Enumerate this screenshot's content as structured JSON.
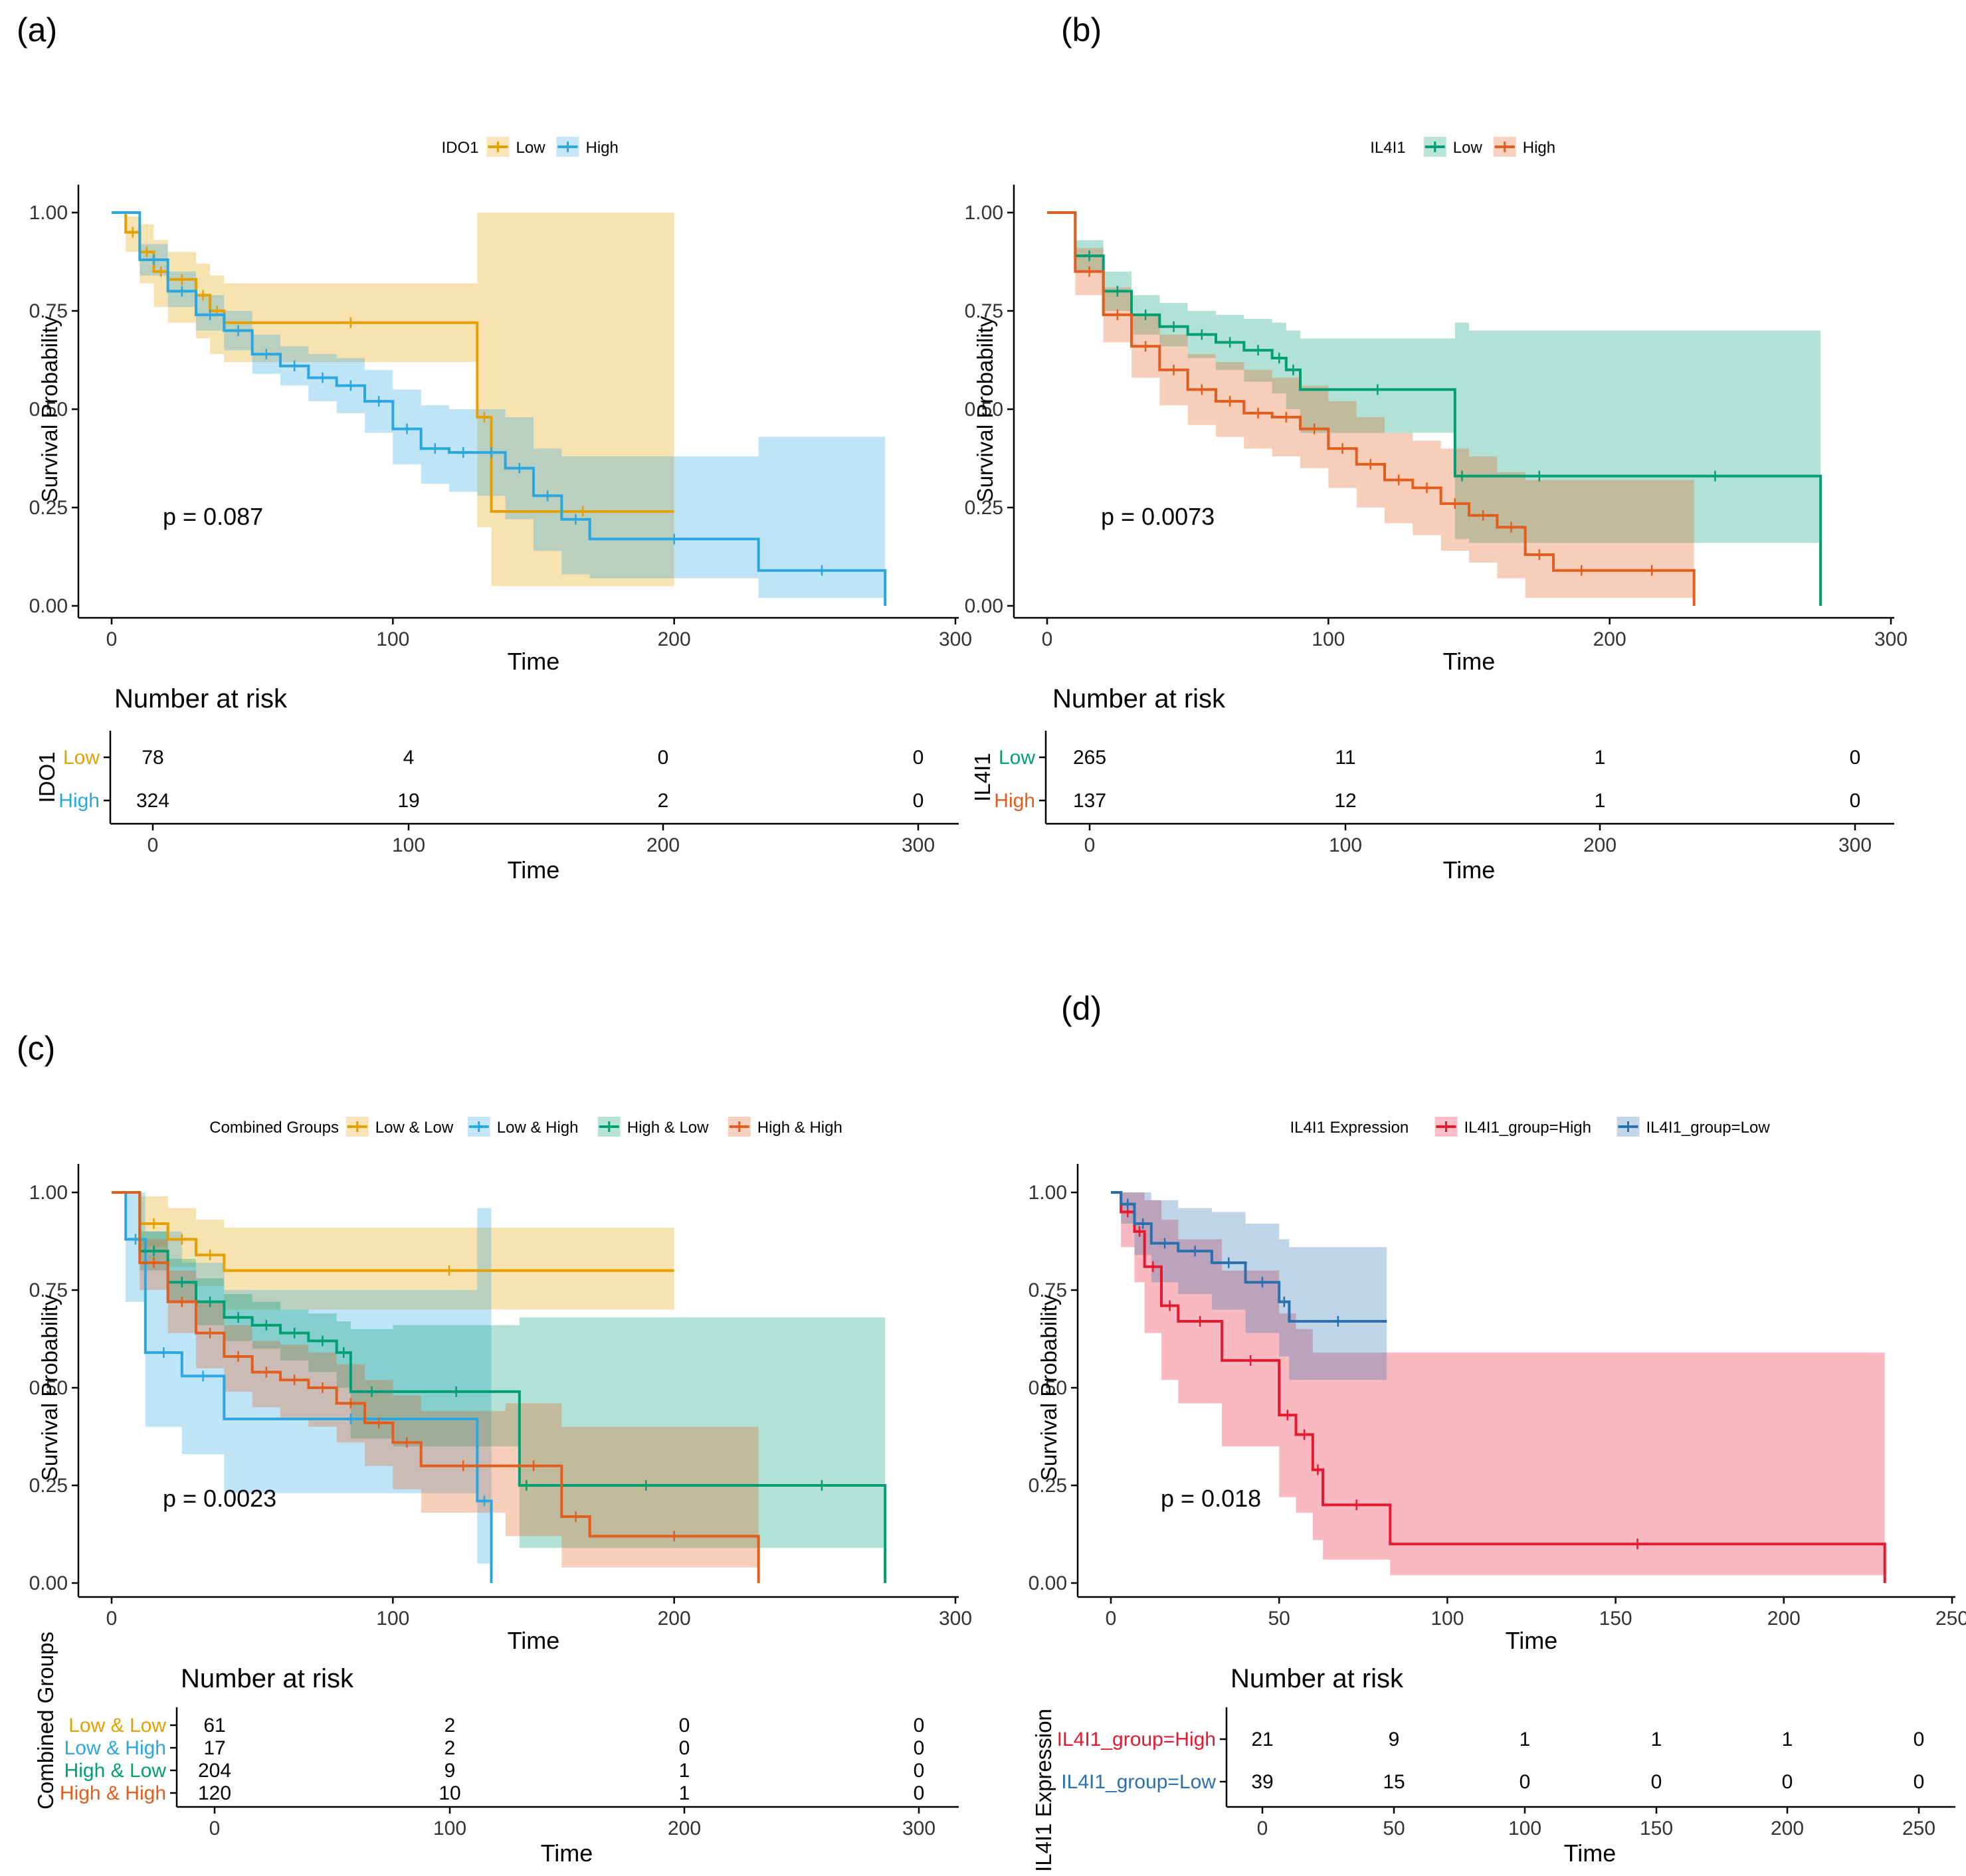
{
  "chart_data": [
    {
      "type": "line",
      "panel_label": "(a)",
      "legend_title": "IDO1",
      "xlabel": "Time",
      "ylabel": "Survival Probability",
      "xlim": [
        0,
        300
      ],
      "ylim": [
        0,
        1
      ],
      "xticks": [
        "0",
        "100",
        "200",
        "300"
      ],
      "yticks": [
        "0.00",
        "0.25",
        "0.50",
        "0.75",
        "1.00"
      ],
      "pvalue": "p = 0.087",
      "series": [
        {
          "name": "Low",
          "color": "#E69F00",
          "x": [
            0,
            5,
            10,
            15,
            20,
            30,
            35,
            40,
            130,
            135,
            200
          ],
          "y": [
            1.0,
            0.95,
            0.9,
            0.85,
            0.83,
            0.79,
            0.75,
            0.72,
            0.48,
            0.24,
            0.24
          ],
          "ci_lo": [
            1.0,
            0.9,
            0.82,
            0.76,
            0.72,
            0.68,
            0.64,
            0.62,
            0.2,
            0.05,
            0.05
          ],
          "ci_hi": [
            1.0,
            0.99,
            0.97,
            0.93,
            0.9,
            0.87,
            0.84,
            0.82,
            1.0,
            1.0,
            1.0
          ]
        },
        {
          "name": "High",
          "color": "#2AA7E0",
          "x": [
            0,
            10,
            20,
            30,
            40,
            50,
            60,
            70,
            80,
            90,
            100,
            110,
            120,
            130,
            140,
            150,
            160,
            170,
            230,
            275
          ],
          "y": [
            1.0,
            0.88,
            0.8,
            0.74,
            0.7,
            0.64,
            0.61,
            0.58,
            0.56,
            0.52,
            0.45,
            0.4,
            0.39,
            0.39,
            0.35,
            0.28,
            0.22,
            0.17,
            0.09,
            0.0
          ],
          "ci_lo": [
            1.0,
            0.84,
            0.76,
            0.7,
            0.65,
            0.59,
            0.56,
            0.52,
            0.49,
            0.44,
            0.36,
            0.31,
            0.29,
            0.28,
            0.22,
            0.14,
            0.08,
            0.07,
            0.02,
            0.02
          ],
          "ci_hi": [
            1.0,
            0.92,
            0.85,
            0.79,
            0.75,
            0.69,
            0.66,
            0.64,
            0.63,
            0.6,
            0.55,
            0.51,
            0.5,
            0.5,
            0.48,
            0.4,
            0.38,
            0.38,
            0.43,
            0.43
          ]
        }
      ],
      "risk_table": {
        "title": "Number at risk",
        "ylabel": "IDO1",
        "times": [
          "0",
          "100",
          "200",
          "300"
        ],
        "rows": [
          {
            "label": "Low",
            "values": [
              "78",
              "4",
              "0",
              "0"
            ]
          },
          {
            "label": "High",
            "values": [
              "324",
              "19",
              "2",
              "0"
            ]
          }
        ]
      }
    },
    {
      "type": "line",
      "panel_label": "(b)",
      "legend_title": "IL4I1",
      "xlabel": "Time",
      "ylabel": "Survival Probability",
      "xlim": [
        0,
        300
      ],
      "ylim": [
        0,
        1
      ],
      "xticks": [
        "0",
        "100",
        "200",
        "300"
      ],
      "yticks": [
        "0.00",
        "0.25",
        "0.50",
        "0.75",
        "1.00"
      ],
      "pvalue": "p = 0.0073",
      "series": [
        {
          "name": "Low",
          "color": "#009E73",
          "x": [
            0,
            10,
            20,
            30,
            40,
            50,
            60,
            70,
            80,
            85,
            90,
            145,
            150,
            200,
            275
          ],
          "y": [
            1.0,
            0.89,
            0.8,
            0.74,
            0.71,
            0.69,
            0.67,
            0.65,
            0.63,
            0.6,
            0.55,
            0.33,
            0.33,
            0.33,
            0.0
          ],
          "ci_lo": [
            1.0,
            0.85,
            0.75,
            0.69,
            0.66,
            0.63,
            0.6,
            0.57,
            0.54,
            0.5,
            0.44,
            0.17,
            0.16,
            0.16,
            0.16
          ],
          "ci_hi": [
            1.0,
            0.93,
            0.85,
            0.79,
            0.77,
            0.75,
            0.74,
            0.73,
            0.72,
            0.7,
            0.68,
            0.72,
            0.7,
            0.7,
            0.7
          ]
        },
        {
          "name": "High",
          "color": "#E35D1C",
          "x": [
            0,
            10,
            20,
            30,
            40,
            50,
            60,
            70,
            80,
            90,
            100,
            110,
            120,
            130,
            140,
            150,
            160,
            170,
            180,
            200,
            230
          ],
          "y": [
            1.0,
            0.85,
            0.74,
            0.66,
            0.6,
            0.55,
            0.52,
            0.49,
            0.48,
            0.45,
            0.4,
            0.36,
            0.32,
            0.3,
            0.26,
            0.23,
            0.2,
            0.13,
            0.09,
            0.09,
            0.0
          ],
          "ci_lo": [
            1.0,
            0.79,
            0.67,
            0.58,
            0.51,
            0.46,
            0.43,
            0.4,
            0.38,
            0.35,
            0.3,
            0.25,
            0.21,
            0.18,
            0.14,
            0.11,
            0.07,
            0.02,
            0.02,
            0.02,
            0.02
          ],
          "ci_hi": [
            1.0,
            0.91,
            0.81,
            0.74,
            0.69,
            0.64,
            0.62,
            0.6,
            0.58,
            0.56,
            0.52,
            0.48,
            0.44,
            0.42,
            0.4,
            0.38,
            0.34,
            0.32,
            0.32,
            0.32,
            0.32
          ]
        }
      ],
      "risk_table": {
        "title": "Number at risk",
        "ylabel": "IL4I1",
        "times": [
          "0",
          "100",
          "200",
          "300"
        ],
        "rows": [
          {
            "label": "Low",
            "values": [
              "265",
              "11",
              "1",
              "0"
            ]
          },
          {
            "label": "High",
            "values": [
              "137",
              "12",
              "1",
              "0"
            ]
          }
        ]
      }
    },
    {
      "type": "line",
      "panel_label": "(c)",
      "legend_title": "Combined Groups",
      "xlabel": "Time",
      "ylabel": "Survival Probability",
      "xlim": [
        0,
        300
      ],
      "ylim": [
        0,
        1
      ],
      "xticks": [
        "0",
        "100",
        "200",
        "300"
      ],
      "yticks": [
        "0.00",
        "0.25",
        "0.50",
        "0.75",
        "1.00"
      ],
      "pvalue": "p = 0.0023",
      "series": [
        {
          "name": "Low & Low",
          "color": "#E69F00",
          "x": [
            0,
            10,
            20,
            30,
            40,
            200
          ],
          "y": [
            1.0,
            0.92,
            0.88,
            0.84,
            0.8,
            0.8
          ],
          "ci_lo": [
            1.0,
            0.86,
            0.81,
            0.76,
            0.7,
            0.7
          ],
          "ci_hi": [
            1.0,
            0.99,
            0.96,
            0.93,
            0.91,
            0.91
          ]
        },
        {
          "name": "Low & High",
          "color": "#2AA7E0",
          "x": [
            0,
            5,
            12,
            25,
            40,
            130,
            135
          ],
          "y": [
            1.0,
            0.88,
            0.59,
            0.53,
            0.42,
            0.21,
            0.0
          ],
          "ci_lo": [
            1.0,
            0.72,
            0.4,
            0.33,
            0.23,
            0.05,
            0.05
          ],
          "ci_hi": [
            1.0,
            1.0,
            0.9,
            0.82,
            0.75,
            0.96,
            0.96
          ]
        },
        {
          "name": "High & Low",
          "color": "#009E73",
          "x": [
            0,
            10,
            20,
            30,
            40,
            50,
            60,
            70,
            80,
            85,
            100,
            145,
            150,
            230,
            275
          ],
          "y": [
            1.0,
            0.85,
            0.77,
            0.72,
            0.68,
            0.66,
            0.64,
            0.62,
            0.59,
            0.49,
            0.49,
            0.25,
            0.25,
            0.25,
            0.0
          ],
          "ci_lo": [
            1.0,
            0.8,
            0.72,
            0.66,
            0.62,
            0.6,
            0.57,
            0.54,
            0.5,
            0.37,
            0.35,
            0.09,
            0.09,
            0.09,
            0.09
          ],
          "ci_hi": [
            1.0,
            0.9,
            0.83,
            0.78,
            0.74,
            0.72,
            0.7,
            0.69,
            0.67,
            0.65,
            0.66,
            0.68,
            0.68,
            0.68,
            0.68
          ]
        },
        {
          "name": "High & High",
          "color": "#E35D1C",
          "x": [
            0,
            10,
            20,
            30,
            40,
            50,
            60,
            70,
            80,
            90,
            100,
            110,
            140,
            160,
            170,
            230
          ],
          "y": [
            1.0,
            0.82,
            0.72,
            0.64,
            0.58,
            0.54,
            0.52,
            0.5,
            0.46,
            0.41,
            0.36,
            0.3,
            0.3,
            0.17,
            0.12,
            0.0
          ],
          "ci_lo": [
            1.0,
            0.75,
            0.64,
            0.55,
            0.49,
            0.45,
            0.42,
            0.4,
            0.36,
            0.3,
            0.24,
            0.18,
            0.12,
            0.04,
            0.04,
            0.04
          ],
          "ci_hi": [
            1.0,
            0.88,
            0.8,
            0.72,
            0.66,
            0.62,
            0.61,
            0.59,
            0.56,
            0.52,
            0.48,
            0.44,
            0.46,
            0.4,
            0.4,
            0.4
          ]
        }
      ],
      "risk_table": {
        "title": "Number at risk",
        "ylabel": "Combined Groups",
        "times": [
          "0",
          "100",
          "200",
          "300"
        ],
        "rows": [
          {
            "label": "Low & Low",
            "values": [
              "61",
              "2",
              "0",
              "0"
            ]
          },
          {
            "label": "Low & High",
            "values": [
              "17",
              "2",
              "0",
              "0"
            ]
          },
          {
            "label": "High & Low",
            "values": [
              "204",
              "9",
              "1",
              "0"
            ]
          },
          {
            "label": "High & High",
            "values": [
              "120",
              "10",
              "1",
              "0"
            ]
          }
        ]
      }
    },
    {
      "type": "line",
      "panel_label": "(d)",
      "legend_title": "IL4I1 Expression",
      "xlabel": "Time",
      "ylabel": "Survival Probability",
      "xlim": [
        0,
        250
      ],
      "ylim": [
        0,
        1
      ],
      "xticks": [
        "0",
        "50",
        "100",
        "150",
        "200",
        "250"
      ],
      "yticks": [
        "0.00",
        "0.25",
        "0.50",
        "0.75",
        "1.00"
      ],
      "pvalue": "p = 0.018",
      "series": [
        {
          "name": "IL4I1_group=High",
          "color": "#E8182E",
          "x": [
            0,
            3,
            7,
            10,
            15,
            20,
            33,
            50,
            55,
            60,
            63,
            83,
            230
          ],
          "y": [
            1.0,
            0.95,
            0.9,
            0.81,
            0.71,
            0.67,
            0.57,
            0.43,
            0.38,
            0.29,
            0.2,
            0.1,
            0.0
          ],
          "ci_lo": [
            1.0,
            0.86,
            0.77,
            0.64,
            0.52,
            0.46,
            0.35,
            0.22,
            0.18,
            0.11,
            0.06,
            0.02,
            0.02
          ],
          "ci_hi": [
            1.0,
            1.0,
            1.0,
            0.98,
            0.93,
            0.88,
            0.8,
            0.69,
            0.65,
            0.59,
            0.59,
            0.59,
            0.59
          ]
        },
        {
          "name": "IL4I1_group=Low",
          "color": "#2A6FAE",
          "x": [
            0,
            3,
            7,
            12,
            20,
            30,
            40,
            50,
            53,
            82
          ],
          "y": [
            1.0,
            0.97,
            0.92,
            0.87,
            0.85,
            0.82,
            0.77,
            0.72,
            0.67,
            0.67
          ],
          "ci_lo": [
            1.0,
            0.92,
            0.84,
            0.77,
            0.74,
            0.7,
            0.64,
            0.58,
            0.52,
            0.52
          ],
          "ci_hi": [
            1.0,
            1.0,
            1.0,
            0.98,
            0.96,
            0.95,
            0.92,
            0.88,
            0.86,
            0.86
          ]
        }
      ],
      "risk_table": {
        "title": "Number at risk",
        "ylabel": "IL4I1 Expression",
        "times": [
          "0",
          "50",
          "100",
          "150",
          "200",
          "250"
        ],
        "rows": [
          {
            "label": "IL4I1_group=High",
            "values": [
              "21",
              "9",
              "1",
              "1",
              "1",
              "0"
            ]
          },
          {
            "label": "IL4I1_group=Low",
            "values": [
              "39",
              "15",
              "0",
              "0",
              "0",
              "0"
            ]
          }
        ]
      }
    }
  ]
}
